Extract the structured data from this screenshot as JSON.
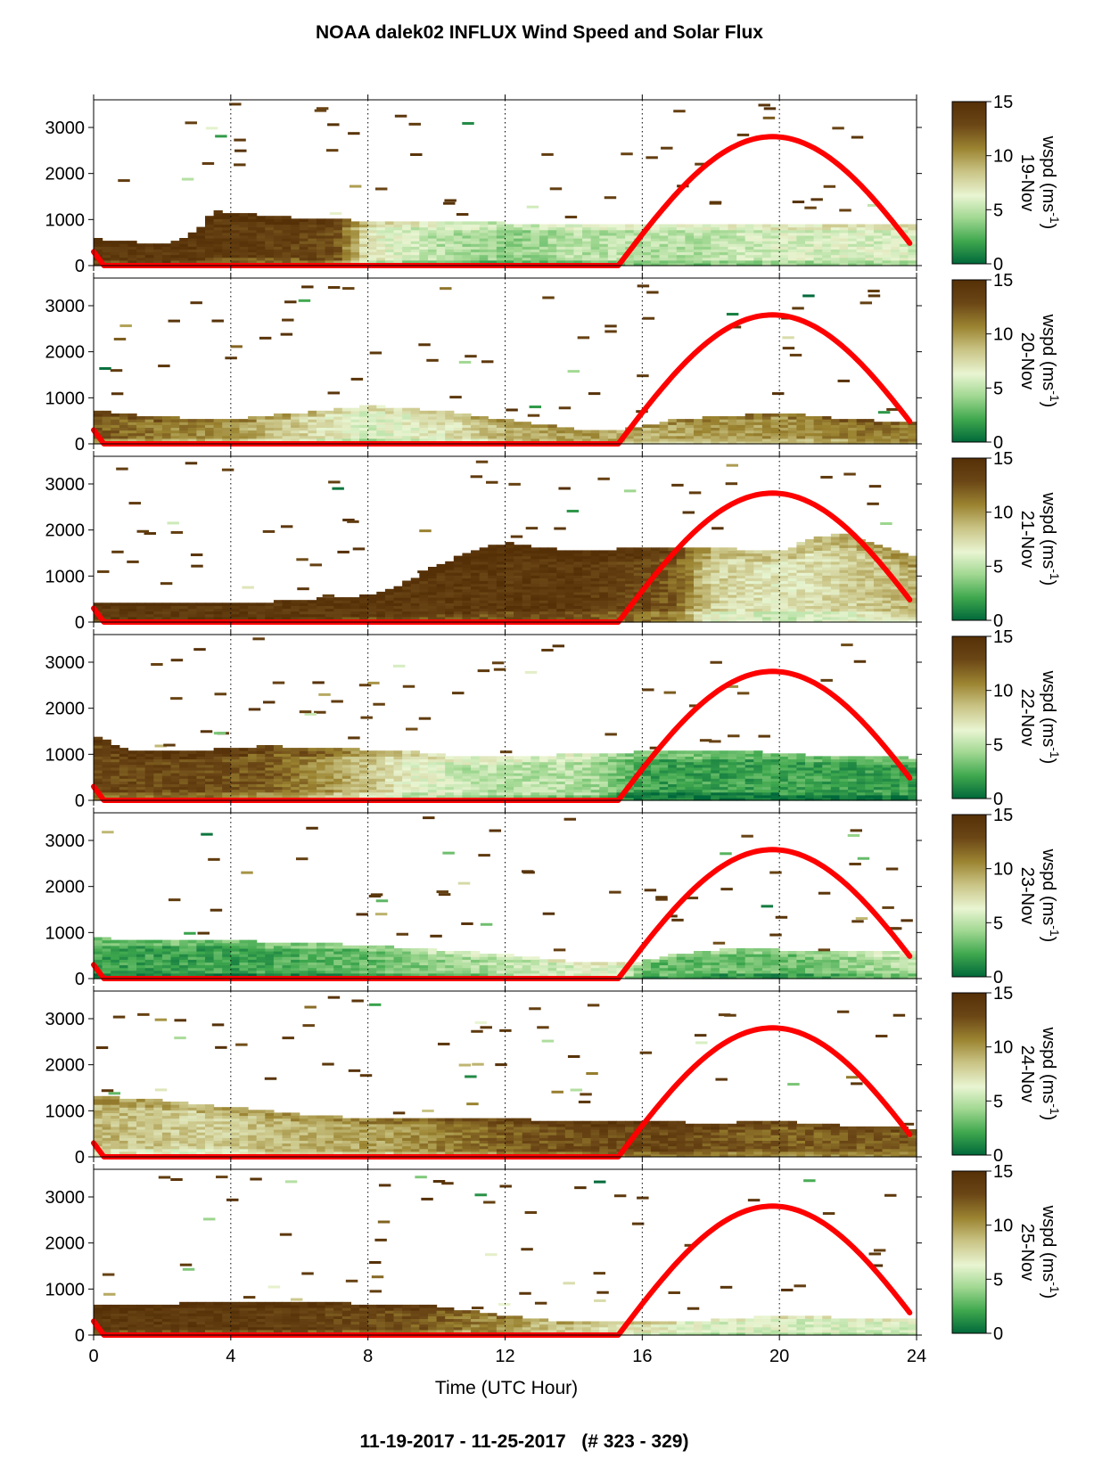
{
  "figure": {
    "title": "NOAA dalek02 INFLUX Wind Speed and Solar Flux",
    "footer": "11-19-2017 - 11-25-2017   (# 323 - 329)"
  },
  "chart_data": {
    "type": "heatmap",
    "title": "NOAA dalek02 INFLUX Wind Speed and Solar Flux",
    "xlabel": "Time (UTC Hour)",
    "xlim": [
      0,
      24
    ],
    "x_ticks": [
      "0",
      "4",
      "8",
      "12",
      "16",
      "20",
      "24"
    ],
    "ylim": [
      0,
      3600
    ],
    "y_ticks": [
      "0",
      "1000",
      "2000",
      "3000"
    ],
    "grid": "vertical dotted lines at 4, 8, 12, 16, 20 h",
    "colorbar": {
      "label_prefix": "wspd (ms",
      "label_sup": "-1",
      "label_suffix": ")",
      "range": [
        0,
        15
      ],
      "ticks": [
        "0",
        "5",
        "10",
        "15"
      ],
      "colors": [
        "#00683a",
        "#3fa84e",
        "#9fd790",
        "#e9f5d2",
        "#c9c384",
        "#9b8431",
        "#6a4515",
        "#553007"
      ]
    },
    "solar_flux": {
      "color": "#ff0000",
      "rise_hour": 15.3,
      "set_hour": 23.8,
      "peak_hour": 19.8,
      "peak_value": 2800
    },
    "panels": [
      {
        "day": "19-Nov",
        "mixed_layer": [
          [
            0,
            550
          ],
          [
            1,
            500
          ],
          [
            2,
            430
          ],
          [
            3,
            700
          ],
          [
            3.5,
            1150
          ],
          [
            4.5,
            1100
          ],
          [
            6,
            1000
          ],
          [
            8,
            950
          ],
          [
            10,
            920
          ],
          [
            12,
            900
          ],
          [
            14,
            850
          ],
          [
            16,
            900
          ],
          [
            18,
            900
          ],
          [
            20,
            900
          ],
          [
            22,
            880
          ],
          [
            23.8,
            850
          ]
        ],
        "speed_profile": [
          [
            0,
            14
          ],
          [
            3,
            14
          ],
          [
            7,
            13
          ],
          [
            8,
            7
          ],
          [
            10,
            5
          ],
          [
            12,
            4
          ],
          [
            14,
            5
          ],
          [
            16,
            5
          ],
          [
            18,
            5
          ],
          [
            20,
            6
          ],
          [
            22,
            6
          ],
          [
            23.8,
            6
          ]
        ]
      },
      {
        "day": "20-Nov",
        "mixed_layer": [
          [
            0,
            700
          ],
          [
            2,
            550
          ],
          [
            4,
            500
          ],
          [
            6,
            650
          ],
          [
            8,
            800
          ],
          [
            10,
            700
          ],
          [
            12,
            500
          ],
          [
            14,
            300
          ],
          [
            15.5,
            300
          ],
          [
            17,
            500
          ],
          [
            19,
            600
          ],
          [
            20,
            650
          ],
          [
            22,
            500
          ],
          [
            23.8,
            450
          ]
        ],
        "speed_profile": [
          [
            0,
            12
          ],
          [
            2,
            11
          ],
          [
            4,
            10
          ],
          [
            6,
            8
          ],
          [
            8,
            6
          ],
          [
            10,
            7
          ],
          [
            12,
            9
          ],
          [
            14,
            10
          ],
          [
            16,
            9
          ],
          [
            18,
            10
          ],
          [
            20,
            10
          ],
          [
            22,
            11
          ],
          [
            23.8,
            11
          ]
        ]
      },
      {
        "day": "21-Nov",
        "mixed_layer": [
          [
            0,
            400
          ],
          [
            4,
            380
          ],
          [
            6,
            450
          ],
          [
            8,
            550
          ],
          [
            9,
            800
          ],
          [
            10,
            1200
          ],
          [
            11,
            1500
          ],
          [
            12,
            1700
          ],
          [
            13,
            1600
          ],
          [
            14,
            1500
          ],
          [
            16,
            1600
          ],
          [
            18,
            1600
          ],
          [
            20,
            1500
          ],
          [
            21,
            1800
          ],
          [
            22,
            1900
          ],
          [
            23.8,
            1400
          ]
        ],
        "speed_profile": [
          [
            0,
            14
          ],
          [
            8,
            14
          ],
          [
            10,
            14
          ],
          [
            12,
            14
          ],
          [
            14,
            14
          ],
          [
            16,
            13
          ],
          [
            17,
            12
          ],
          [
            18,
            8
          ],
          [
            20,
            7
          ],
          [
            22,
            8
          ],
          [
            23.8,
            9
          ]
        ]
      },
      {
        "day": "22-Nov",
        "mixed_layer": [
          [
            0,
            1400
          ],
          [
            1,
            1050
          ],
          [
            3,
            1050
          ],
          [
            5,
            1150
          ],
          [
            7,
            1100
          ],
          [
            9,
            1050
          ],
          [
            11,
            900
          ],
          [
            13,
            950
          ],
          [
            15,
            1000
          ],
          [
            17,
            1050
          ],
          [
            19,
            1050
          ],
          [
            21,
            950
          ],
          [
            23.8,
            900
          ]
        ],
        "speed_profile": [
          [
            0,
            13
          ],
          [
            3,
            13
          ],
          [
            5,
            12
          ],
          [
            7,
            10
          ],
          [
            9,
            7
          ],
          [
            11,
            5
          ],
          [
            13,
            5
          ],
          [
            14,
            5
          ],
          [
            15,
            4
          ],
          [
            16,
            2
          ],
          [
            18,
            2
          ],
          [
            20,
            2
          ],
          [
            22,
            2
          ],
          [
            23.8,
            2
          ]
        ]
      },
      {
        "day": "23-Nov",
        "mixed_layer": [
          [
            0,
            850
          ],
          [
            2,
            800
          ],
          [
            4,
            800
          ],
          [
            6,
            750
          ],
          [
            8,
            700
          ],
          [
            10,
            600
          ],
          [
            12,
            500
          ],
          [
            14,
            350
          ],
          [
            15.5,
            300
          ],
          [
            17,
            500
          ],
          [
            19,
            650
          ],
          [
            21,
            550
          ],
          [
            23.8,
            550
          ]
        ],
        "speed_profile": [
          [
            0,
            2
          ],
          [
            4,
            2
          ],
          [
            8,
            3
          ],
          [
            10,
            4
          ],
          [
            12,
            5
          ],
          [
            14,
            6
          ],
          [
            15.5,
            6
          ],
          [
            16,
            3
          ],
          [
            18,
            3
          ],
          [
            20,
            3
          ],
          [
            22,
            4
          ],
          [
            23.8,
            5
          ]
        ]
      },
      {
        "day": "24-Nov",
        "mixed_layer": [
          [
            0,
            1300
          ],
          [
            1,
            1250
          ],
          [
            2,
            1200
          ],
          [
            4,
            1050
          ],
          [
            6,
            900
          ],
          [
            8,
            800
          ],
          [
            10,
            800
          ],
          [
            12,
            800
          ],
          [
            14,
            750
          ],
          [
            16,
            750
          ],
          [
            18,
            700
          ],
          [
            20,
            750
          ],
          [
            22,
            650
          ],
          [
            23.8,
            600
          ]
        ],
        "speed_profile": [
          [
            0,
            9
          ],
          [
            3,
            8
          ],
          [
            6,
            9
          ],
          [
            9,
            10
          ],
          [
            12,
            12
          ],
          [
            15,
            13
          ],
          [
            17,
            13
          ],
          [
            19,
            12
          ],
          [
            21,
            12
          ],
          [
            23.8,
            12
          ]
        ]
      },
      {
        "day": "25-Nov",
        "mixed_layer": [
          [
            0,
            600
          ],
          [
            2,
            650
          ],
          [
            4,
            700
          ],
          [
            6,
            700
          ],
          [
            8,
            650
          ],
          [
            10,
            600
          ],
          [
            12,
            400
          ],
          [
            14,
            250
          ],
          [
            15.5,
            250
          ],
          [
            18,
            300
          ],
          [
            20,
            400
          ],
          [
            22,
            350
          ],
          [
            23.8,
            350
          ]
        ],
        "speed_profile": [
          [
            0,
            14
          ],
          [
            4,
            14
          ],
          [
            8,
            13
          ],
          [
            10,
            12
          ],
          [
            12,
            10
          ],
          [
            14,
            8
          ],
          [
            16,
            7
          ],
          [
            18,
            6
          ],
          [
            20,
            6
          ],
          [
            22,
            6
          ],
          [
            23.8,
            6
          ]
        ]
      }
    ]
  }
}
